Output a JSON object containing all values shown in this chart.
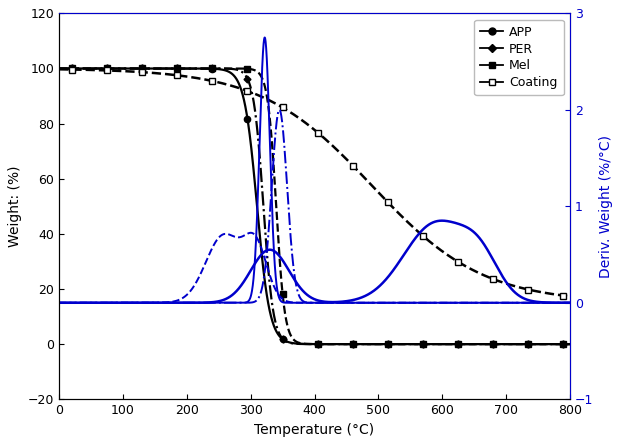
{
  "title": "",
  "xlabel": "Temperature (°C)",
  "ylabel_left": "Weight: (%)",
  "ylabel_right": "Deriv. Weight (%/°C)",
  "xlim": [
    0,
    800
  ],
  "ylim_left": [
    -20,
    120
  ],
  "ylim_right": [
    -1,
    3
  ],
  "legend": [
    "APP",
    "PER",
    "Mel",
    "Coating"
  ],
  "line_color_weight": "#000000",
  "line_color_deriv": "#0000cc",
  "bg_color": "#ffffff",
  "xticks": [
    0,
    100,
    200,
    300,
    400,
    500,
    600,
    700,
    800
  ],
  "yticks_left": [
    -20,
    0,
    20,
    40,
    60,
    80,
    100,
    120
  ],
  "yticks_right": [
    -1,
    0,
    1,
    2,
    3
  ]
}
